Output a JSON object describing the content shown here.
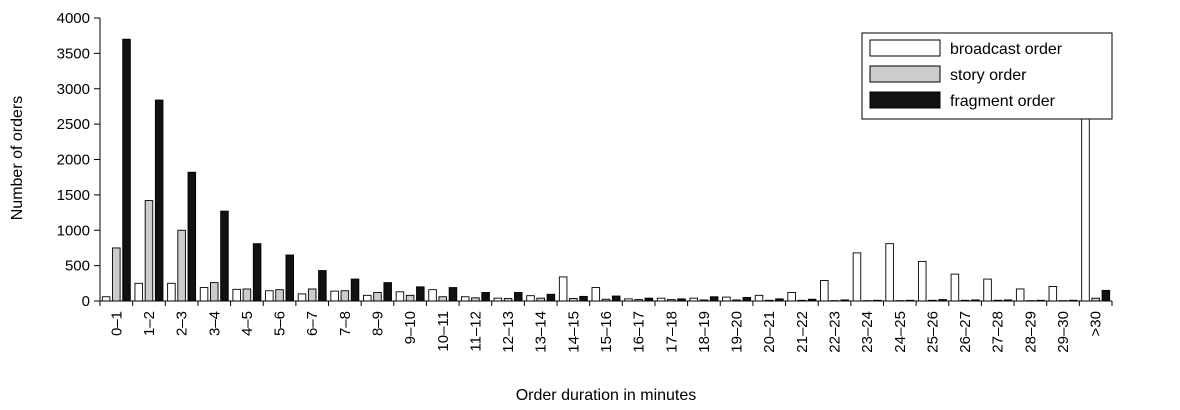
{
  "chart_data": {
    "type": "bar",
    "title": "",
    "xlabel": "Order duration in minutes",
    "ylabel": "Number of orders",
    "ylim": [
      0,
      4000
    ],
    "yticks": [
      0,
      500,
      1000,
      1500,
      2000,
      2500,
      3000,
      3500,
      4000
    ],
    "legend_position": "top-right",
    "categories": [
      "0–1",
      "1–2",
      "2–3",
      "3–4",
      "4–5",
      "5–6",
      "6–7",
      "7–8",
      "8–9",
      "9–10",
      "10–11",
      "11–12",
      "12–13",
      "13–14",
      "14–15",
      "15–16",
      "16–17",
      "17–18",
      "18–19",
      "19–20",
      "20–21",
      "21–22",
      "22–23",
      "23–24",
      "24–25",
      "25–26",
      "26–27",
      "27–28",
      "28–29",
      "29–30",
      ">30"
    ],
    "series": [
      {
        "name": "broadcast order",
        "color": "#ffffff",
        "values": [
          60,
          250,
          250,
          190,
          165,
          145,
          100,
          140,
          80,
          130,
          160,
          60,
          40,
          75,
          340,
          190,
          30,
          40,
          40,
          55,
          80,
          120,
          290,
          680,
          810,
          560,
          380,
          310,
          170,
          205,
          2940
        ]
      },
      {
        "name": "story order",
        "color": "#cccccc",
        "values": [
          750,
          1420,
          1000,
          260,
          170,
          160,
          170,
          145,
          120,
          80,
          60,
          45,
          35,
          40,
          35,
          25,
          20,
          20,
          15,
          15,
          10,
          10,
          5,
          5,
          5,
          10,
          10,
          10,
          5,
          5,
          40
        ]
      },
      {
        "name": "fragment order",
        "color": "#111111",
        "values": [
          3700,
          2840,
          1820,
          1270,
          810,
          650,
          430,
          310,
          260,
          200,
          190,
          120,
          120,
          95,
          65,
          70,
          40,
          30,
          60,
          50,
          30,
          25,
          15,
          10,
          10,
          20,
          15,
          15,
          10,
          10,
          150
        ]
      }
    ]
  }
}
